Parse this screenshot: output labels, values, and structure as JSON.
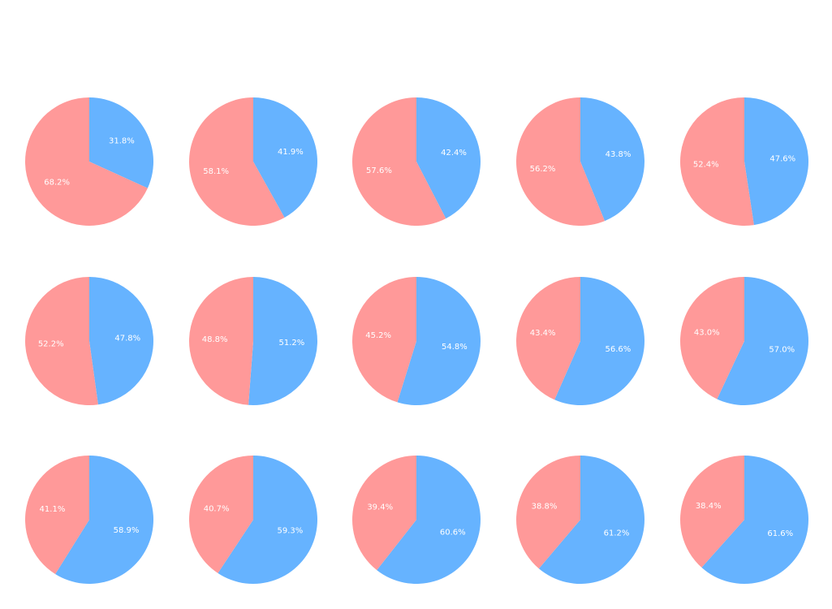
{
  "colors": {
    "blue": "#66b3ff",
    "pink": "#ff9999"
  },
  "chart_data": [
    {
      "type": "pie",
      "values": [
        31.8,
        68.2
      ],
      "labels": [
        "31.8%",
        "68.2%"
      ],
      "colors": [
        "#66b3ff",
        "#ff9999"
      ]
    },
    {
      "type": "pie",
      "values": [
        41.9,
        58.1
      ],
      "labels": [
        "41.9%",
        "58.1%"
      ],
      "colors": [
        "#66b3ff",
        "#ff9999"
      ]
    },
    {
      "type": "pie",
      "values": [
        42.4,
        57.6
      ],
      "labels": [
        "42.4%",
        "57.6%"
      ],
      "colors": [
        "#66b3ff",
        "#ff9999"
      ]
    },
    {
      "type": "pie",
      "values": [
        43.8,
        56.2
      ],
      "labels": [
        "43.8%",
        "56.2%"
      ],
      "colors": [
        "#66b3ff",
        "#ff9999"
      ]
    },
    {
      "type": "pie",
      "values": [
        47.6,
        52.4
      ],
      "labels": [
        "47.6%",
        "52.4%"
      ],
      "colors": [
        "#66b3ff",
        "#ff9999"
      ]
    },
    {
      "type": "pie",
      "values": [
        47.8,
        52.2
      ],
      "labels": [
        "47.8%",
        "52.2%"
      ],
      "colors": [
        "#66b3ff",
        "#ff9999"
      ]
    },
    {
      "type": "pie",
      "values": [
        51.2,
        48.8
      ],
      "labels": [
        "51.2%",
        "48.8%"
      ],
      "colors": [
        "#66b3ff",
        "#ff9999"
      ]
    },
    {
      "type": "pie",
      "values": [
        54.8,
        45.2
      ],
      "labels": [
        "54.8%",
        "45.2%"
      ],
      "colors": [
        "#66b3ff",
        "#ff9999"
      ]
    },
    {
      "type": "pie",
      "values": [
        56.6,
        43.4
      ],
      "labels": [
        "56.6%",
        "43.4%"
      ],
      "colors": [
        "#66b3ff",
        "#ff9999"
      ]
    },
    {
      "type": "pie",
      "values": [
        57.0,
        43.0
      ],
      "labels": [
        "57.0%",
        "43.0%"
      ],
      "colors": [
        "#66b3ff",
        "#ff9999"
      ]
    },
    {
      "type": "pie",
      "values": [
        58.9,
        41.1
      ],
      "labels": [
        "58.9%",
        "41.1%"
      ],
      "colors": [
        "#66b3ff",
        "#ff9999"
      ]
    },
    {
      "type": "pie",
      "values": [
        59.3,
        40.7
      ],
      "labels": [
        "59.3%",
        "40.7%"
      ],
      "colors": [
        "#66b3ff",
        "#ff9999"
      ]
    },
    {
      "type": "pie",
      "values": [
        60.6,
        39.4
      ],
      "labels": [
        "60.6%",
        "39.4%"
      ],
      "colors": [
        "#66b3ff",
        "#ff9999"
      ]
    },
    {
      "type": "pie",
      "values": [
        61.2,
        38.8
      ],
      "labels": [
        "61.2%",
        "38.8%"
      ],
      "colors": [
        "#66b3ff",
        "#ff9999"
      ]
    },
    {
      "type": "pie",
      "values": [
        61.6,
        38.4
      ],
      "labels": [
        "61.6%",
        "38.4%"
      ],
      "colors": [
        "#66b3ff",
        "#ff9999"
      ]
    }
  ]
}
